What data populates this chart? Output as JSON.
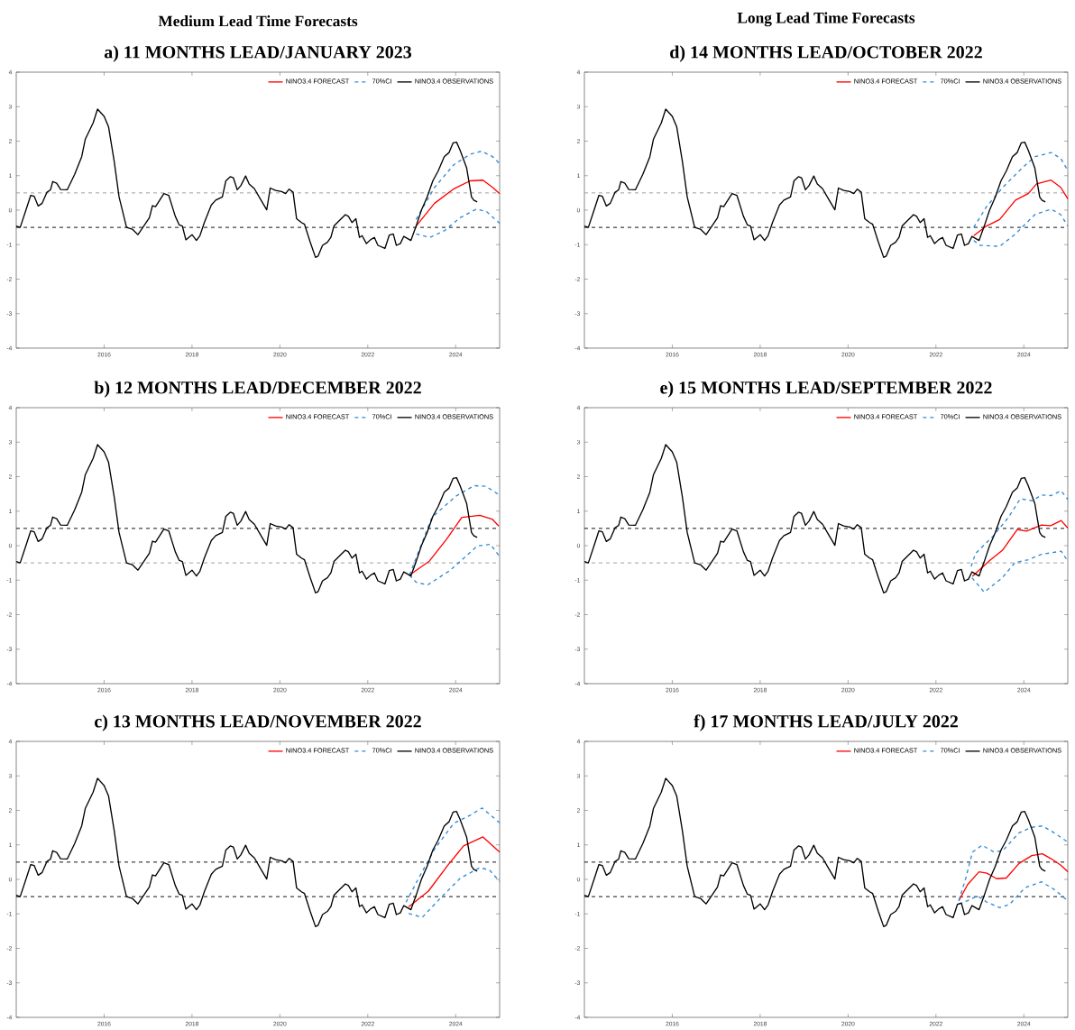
{
  "chart_data": [
    {
      "type": "line",
      "title": "a) 11 MONTHS LEAD/JANUARY 2023",
      "annotations": [
        "Medium Lead Time Forecasts"
      ],
      "xlim": [
        2014,
        2025
      ],
      "ylim": [
        -4,
        4
      ],
      "xticks": [
        2016,
        2018,
        2020,
        2022,
        2024
      ],
      "yticks": [
        -4,
        -3,
        -2,
        -1,
        0,
        1,
        2,
        3,
        4
      ],
      "legend": "top right",
      "marker": "none",
      "ref_lines": [
        {
          "axis": "y",
          "value": 0.5,
          "color": "#999999",
          "line_style": "dashed"
        },
        {
          "axis": "y",
          "value": -0.5,
          "color": "#000000",
          "line_style": "dashed"
        }
      ],
      "series": [
        {
          "name": "NINO3.4 FORECAST",
          "color": "#ff0000",
          "line_style": "solid",
          "x": [
            2023.1,
            2023.52,
            2023.96,
            2024.33,
            2024.62,
            2024.84,
            2025.0
          ],
          "values": [
            -0.46,
            0.2,
            0.62,
            0.85,
            0.87,
            0.66,
            0.48
          ]
        },
        {
          "name": "70%CI",
          "color": "#2e8ad8",
          "line_style": "dashed",
          "x": [
            2023.1,
            2023.52,
            2023.96,
            2024.33,
            2024.59,
            2024.84,
            2025.0
          ],
          "values": [
            -0.27,
            0.66,
            1.32,
            1.62,
            1.71,
            1.55,
            1.35
          ]
        },
        {
          "color": "#2e8ad8",
          "line_style": "dashed",
          "x": [
            2023.1,
            2023.41,
            2023.74,
            2024.1,
            2024.47,
            2024.7,
            2025.0
          ],
          "values": [
            -0.69,
            -0.79,
            -0.6,
            -0.22,
            0.03,
            -0.04,
            -0.38
          ]
        },
        {
          "name": "NINO3.4 OBSERVATIONS",
          "color": "#000000",
          "line_style": "solid",
          "x": [
            2014.0,
            2014.09,
            2014.22,
            2014.33,
            2014.41,
            2014.5,
            2014.59,
            2014.7,
            2014.78,
            2014.83,
            2014.92,
            2015.01,
            2015.16,
            2015.33,
            2015.49,
            2015.57,
            2015.75,
            2015.85,
            2016.0,
            2016.1,
            2016.23,
            2016.34,
            2016.51,
            2016.64,
            2016.77,
            2017.03,
            2017.1,
            2017.17,
            2017.36,
            2017.47,
            2017.62,
            2017.71,
            2017.78,
            2017.86,
            2018.0,
            2018.1,
            2018.18,
            2018.28,
            2018.44,
            2018.54,
            2018.69,
            2018.77,
            2018.87,
            2018.94,
            2019.03,
            2019.11,
            2019.22,
            2019.3,
            2019.42,
            2019.57,
            2019.7,
            2019.78,
            2019.9,
            2020.04,
            2020.13,
            2020.21,
            2020.3,
            2020.38,
            2020.49,
            2020.56,
            2020.69,
            2020.81,
            2020.87,
            2020.97,
            2021.08,
            2021.16,
            2021.23,
            2021.38,
            2021.49,
            2021.56,
            2021.64,
            2021.73,
            2021.81,
            2021.87,
            2021.97,
            2022.06,
            2022.15,
            2022.23,
            2022.39,
            2022.49,
            2022.58,
            2022.65,
            2022.74,
            2022.82,
            2022.98,
            2023.1,
            2023.22,
            2023.35,
            2023.48,
            2023.6,
            2023.74,
            2023.85,
            2023.94,
            2024.02,
            2024.1,
            2024.25,
            2024.36,
            2024.41,
            2024.49
          ],
          "values": [
            -0.46,
            -0.5,
            0.0,
            0.43,
            0.4,
            0.12,
            0.2,
            0.52,
            0.59,
            0.83,
            0.78,
            0.6,
            0.59,
            1.04,
            1.55,
            2.05,
            2.53,
            2.93,
            2.72,
            2.42,
            1.41,
            0.38,
            -0.5,
            -0.55,
            -0.71,
            -0.22,
            0.13,
            0.1,
            0.48,
            0.43,
            -0.18,
            -0.43,
            -0.46,
            -0.86,
            -0.71,
            -0.88,
            -0.74,
            -0.36,
            0.15,
            0.29,
            0.38,
            0.85,
            0.97,
            0.94,
            0.59,
            0.71,
            0.99,
            0.76,
            0.62,
            0.29,
            0.01,
            0.64,
            0.57,
            0.54,
            0.48,
            0.61,
            0.52,
            -0.25,
            -0.36,
            -0.41,
            -0.93,
            -1.37,
            -1.33,
            -1.02,
            -0.93,
            -0.79,
            -0.46,
            -0.27,
            -0.13,
            -0.18,
            -0.36,
            -0.25,
            -0.79,
            -0.74,
            -0.97,
            -0.86,
            -0.79,
            -1.02,
            -1.11,
            -0.72,
            -0.69,
            -1.02,
            -0.97,
            -0.76,
            -0.88,
            -0.46,
            0.0,
            0.38,
            0.85,
            1.13,
            1.55,
            1.67,
            1.95,
            1.97,
            1.74,
            1.22,
            0.38,
            0.29,
            0.24
          ]
        }
      ]
    },
    {
      "type": "line",
      "title": "b) 12 MONTHS LEAD/DECEMBER 2022",
      "xlim": [
        2014,
        2025
      ],
      "ylim": [
        -4,
        4
      ],
      "xticks": [
        2016,
        2018,
        2020,
        2022,
        2024
      ],
      "yticks": [
        -4,
        -3,
        -2,
        -1,
        0,
        1,
        2,
        3,
        4
      ],
      "legend": "top right",
      "marker": "none",
      "ref_lines": [
        {
          "axis": "y",
          "value": 0.5,
          "color": "#000000",
          "line_style": "dashed"
        },
        {
          "axis": "y",
          "value": -0.5,
          "color": "#999999",
          "line_style": "dashed"
        }
      ],
      "series": [
        {
          "name": "NINO3.4 FORECAST",
          "color": "#ff0000",
          "line_style": "solid",
          "x": [
            2022.95,
            2023.4,
            2023.8,
            2024.14,
            2024.55,
            2024.83,
            2024.98
          ],
          "values": [
            -0.85,
            -0.45,
            0.2,
            0.82,
            0.88,
            0.77,
            0.57
          ]
        },
        {
          "name": "70%CI",
          "color": "#2e8ad8",
          "line_style": "dashed",
          "x": [
            2022.95,
            2023.46,
            2024.0,
            2024.42,
            2024.69,
            2024.98
          ],
          "values": [
            -0.85,
            0.82,
            1.43,
            1.74,
            1.72,
            1.48
          ]
        },
        {
          "color": "#2e8ad8",
          "line_style": "dashed",
          "x": [
            2022.95,
            2023.1,
            2023.36,
            2023.87,
            2024.49,
            2024.79,
            2024.98
          ],
          "values": [
            -0.85,
            -1.06,
            -1.14,
            -0.72,
            -0.01,
            0.04,
            -0.28
          ]
        },
        {
          "name": "NINO3.4 OBSERVATIONS",
          "color": "#000000",
          "line_style": "solid",
          "x": [
            2014.0,
            2014.09,
            2014.22,
            2014.33,
            2014.41,
            2014.5,
            2014.59,
            2014.7,
            2014.78,
            2014.83,
            2014.92,
            2015.01,
            2015.16,
            2015.33,
            2015.49,
            2015.57,
            2015.75,
            2015.85,
            2016.0,
            2016.1,
            2016.23,
            2016.34,
            2016.51,
            2016.64,
            2016.77,
            2017.03,
            2017.1,
            2017.17,
            2017.36,
            2017.47,
            2017.62,
            2017.71,
            2017.78,
            2017.86,
            2018.0,
            2018.1,
            2018.18,
            2018.28,
            2018.44,
            2018.54,
            2018.69,
            2018.77,
            2018.87,
            2018.94,
            2019.03,
            2019.11,
            2019.22,
            2019.3,
            2019.42,
            2019.57,
            2019.7,
            2019.78,
            2019.9,
            2020.04,
            2020.13,
            2020.21,
            2020.3,
            2020.38,
            2020.49,
            2020.56,
            2020.69,
            2020.81,
            2020.87,
            2020.97,
            2021.08,
            2021.16,
            2021.23,
            2021.38,
            2021.49,
            2021.56,
            2021.64,
            2021.73,
            2021.81,
            2021.87,
            2021.97,
            2022.06,
            2022.15,
            2022.23,
            2022.39,
            2022.49,
            2022.58,
            2022.65,
            2022.74,
            2022.82,
            2022.98,
            2023.1,
            2023.22,
            2023.35,
            2023.48,
            2023.6,
            2023.74,
            2023.85,
            2023.94,
            2024.02,
            2024.1,
            2024.25,
            2024.36,
            2024.41,
            2024.49
          ],
          "values": [
            -0.46,
            -0.5,
            0.0,
            0.43,
            0.4,
            0.12,
            0.2,
            0.52,
            0.59,
            0.83,
            0.78,
            0.6,
            0.59,
            1.04,
            1.55,
            2.05,
            2.53,
            2.93,
            2.72,
            2.42,
            1.41,
            0.38,
            -0.5,
            -0.55,
            -0.71,
            -0.22,
            0.13,
            0.1,
            0.48,
            0.43,
            -0.18,
            -0.43,
            -0.46,
            -0.86,
            -0.71,
            -0.88,
            -0.74,
            -0.36,
            0.15,
            0.29,
            0.38,
            0.85,
            0.97,
            0.94,
            0.59,
            0.71,
            0.99,
            0.76,
            0.62,
            0.29,
            0.01,
            0.64,
            0.57,
            0.54,
            0.48,
            0.61,
            0.52,
            -0.25,
            -0.36,
            -0.41,
            -0.93,
            -1.37,
            -1.33,
            -1.02,
            -0.93,
            -0.79,
            -0.46,
            -0.27,
            -0.13,
            -0.18,
            -0.36,
            -0.25,
            -0.79,
            -0.74,
            -0.97,
            -0.86,
            -0.79,
            -1.02,
            -1.11,
            -0.72,
            -0.69,
            -1.02,
            -0.97,
            -0.76,
            -0.88,
            -0.46,
            0.0,
            0.38,
            0.85,
            1.13,
            1.55,
            1.67,
            1.95,
            1.97,
            1.74,
            1.22,
            0.38,
            0.29,
            0.24
          ]
        }
      ]
    },
    {
      "type": "line",
      "title": "c) 13 MONTHS LEAD/NOVEMBER 2022",
      "xlim": [
        2014,
        2025
      ],
      "ylim": [
        -4,
        4
      ],
      "xticks": [
        2016,
        2018,
        2020,
        2022,
        2024
      ],
      "yticks": [
        -4,
        -3,
        -2,
        -1,
        0,
        1,
        2,
        3,
        4
      ],
      "legend": "top right",
      "marker": "none",
      "ref_lines": [
        {
          "axis": "y",
          "value": 0.5,
          "color": "#000000",
          "line_style": "dashed"
        },
        {
          "axis": "y",
          "value": -0.5,
          "color": "#000000",
          "line_style": "dashed"
        }
      ],
      "series": [
        {
          "name": "NINO3.4 FORECAST",
          "color": "#ff0000",
          "line_style": "solid",
          "x": [
            2022.93,
            2023.38,
            2023.82,
            2024.18,
            2024.62,
            2025.0
          ],
          "values": [
            -0.8,
            -0.34,
            0.41,
            0.97,
            1.23,
            0.79
          ]
        },
        {
          "name": "70%CI",
          "color": "#2e8ad8",
          "line_style": "dashed",
          "x": [
            2022.87,
            2023.16,
            2023.52,
            2023.96,
            2024.33,
            2024.6,
            2025.0
          ],
          "values": [
            -0.66,
            0.04,
            0.88,
            1.63,
            1.86,
            2.07,
            1.64
          ]
        },
        {
          "color": "#2e8ad8",
          "line_style": "dashed",
          "x": [
            2022.93,
            2023.24,
            2023.67,
            2024.11,
            2024.55,
            2024.77,
            2025.0
          ],
          "values": [
            -0.99,
            -1.1,
            -0.52,
            0.04,
            0.34,
            0.27,
            -0.06
          ]
        },
        {
          "name": "NINO3.4 OBSERVATIONS",
          "color": "#000000",
          "line_style": "solid",
          "x": [
            2014.0,
            2014.09,
            2014.22,
            2014.33,
            2014.41,
            2014.5,
            2014.59,
            2014.7,
            2014.78,
            2014.83,
            2014.92,
            2015.01,
            2015.16,
            2015.33,
            2015.49,
            2015.57,
            2015.75,
            2015.85,
            2016.0,
            2016.1,
            2016.23,
            2016.34,
            2016.51,
            2016.64,
            2016.77,
            2017.03,
            2017.1,
            2017.17,
            2017.36,
            2017.47,
            2017.62,
            2017.71,
            2017.78,
            2017.86,
            2018.0,
            2018.1,
            2018.18,
            2018.28,
            2018.44,
            2018.54,
            2018.69,
            2018.77,
            2018.87,
            2018.94,
            2019.03,
            2019.11,
            2019.22,
            2019.3,
            2019.42,
            2019.57,
            2019.7,
            2019.78,
            2019.9,
            2020.04,
            2020.13,
            2020.21,
            2020.3,
            2020.38,
            2020.49,
            2020.56,
            2020.69,
            2020.81,
            2020.87,
            2020.97,
            2021.08,
            2021.16,
            2021.23,
            2021.38,
            2021.49,
            2021.56,
            2021.64,
            2021.73,
            2021.81,
            2021.87,
            2021.97,
            2022.06,
            2022.15,
            2022.23,
            2022.39,
            2022.49,
            2022.58,
            2022.65,
            2022.74,
            2022.82,
            2022.98,
            2023.1,
            2023.22,
            2023.35,
            2023.48,
            2023.6,
            2023.74,
            2023.85,
            2023.94,
            2024.02,
            2024.1,
            2024.25,
            2024.36,
            2024.41,
            2024.49
          ],
          "values": [
            -0.46,
            -0.5,
            0.0,
            0.43,
            0.4,
            0.12,
            0.2,
            0.52,
            0.59,
            0.83,
            0.78,
            0.6,
            0.59,
            1.04,
            1.55,
            2.05,
            2.53,
            2.93,
            2.72,
            2.42,
            1.41,
            0.38,
            -0.5,
            -0.55,
            -0.71,
            -0.22,
            0.13,
            0.1,
            0.48,
            0.43,
            -0.18,
            -0.43,
            -0.46,
            -0.86,
            -0.71,
            -0.88,
            -0.74,
            -0.36,
            0.15,
            0.29,
            0.38,
            0.85,
            0.97,
            0.94,
            0.59,
            0.71,
            0.99,
            0.76,
            0.62,
            0.29,
            0.01,
            0.64,
            0.57,
            0.54,
            0.48,
            0.61,
            0.52,
            -0.25,
            -0.36,
            -0.41,
            -0.93,
            -1.37,
            -1.33,
            -1.02,
            -0.93,
            -0.79,
            -0.46,
            -0.27,
            -0.13,
            -0.18,
            -0.36,
            -0.25,
            -0.79,
            -0.74,
            -0.97,
            -0.86,
            -0.79,
            -1.02,
            -1.11,
            -0.72,
            -0.69,
            -1.02,
            -0.97,
            -0.76,
            -0.88,
            -0.46,
            0.0,
            0.38,
            0.85,
            1.13,
            1.55,
            1.67,
            1.95,
            1.97,
            1.74,
            1.22,
            0.38,
            0.29,
            0.24
          ]
        }
      ]
    },
    {
      "type": "line",
      "title": "d) 14 MONTHS LEAD/OCTOBER 2022",
      "annotations": [
        "Long Lead Time Forecasts"
      ],
      "xlim": [
        2014,
        2025
      ],
      "ylim": [
        -4,
        4
      ],
      "xticks": [
        2016,
        2018,
        2020,
        2022,
        2024
      ],
      "yticks": [
        -4,
        -3,
        -2,
        -1,
        0,
        1,
        2,
        3,
        4
      ],
      "legend": "top right",
      "marker": "none",
      "ref_lines": [
        {
          "axis": "y",
          "value": 0.5,
          "color": "#999999",
          "line_style": "dashed"
        },
        {
          "axis": "y",
          "value": -0.5,
          "color": "#000000",
          "line_style": "dashed"
        }
      ],
      "series": [
        {
          "name": "NINO3.4 FORECAST",
          "color": "#ff0000",
          "line_style": "solid",
          "x": [
            2022.86,
            2023.15,
            2023.45,
            2023.81,
            2024.1,
            2024.29,
            2024.62,
            2024.84,
            2025.0
          ],
          "values": [
            -0.74,
            -0.46,
            -0.27,
            0.29,
            0.48,
            0.76,
            0.87,
            0.66,
            0.33
          ]
        },
        {
          "name": "70%CI",
          "color": "#2e8ad8",
          "line_style": "dashed",
          "x": [
            2022.86,
            2023.15,
            2023.52,
            2023.96,
            2024.25,
            2024.62,
            2024.84,
            2025.0
          ],
          "values": [
            -0.5,
            0.1,
            0.66,
            1.22,
            1.55,
            1.67,
            1.5,
            1.15
          ]
        },
        {
          "color": "#2e8ad8",
          "line_style": "dashed",
          "x": [
            2022.86,
            2023.0,
            2023.45,
            2023.81,
            2024.25,
            2024.62,
            2024.84,
            2025.0
          ],
          "values": [
            -0.88,
            -1.02,
            -1.05,
            -0.69,
            -0.13,
            0.03,
            -0.13,
            -0.46
          ]
        },
        {
          "name": "NINO3.4 OBSERVATIONS",
          "color": "#000000",
          "line_style": "solid",
          "x": [
            2014.0,
            2014.09,
            2014.22,
            2014.33,
            2014.41,
            2014.5,
            2014.59,
            2014.7,
            2014.78,
            2014.83,
            2014.92,
            2015.01,
            2015.16,
            2015.33,
            2015.49,
            2015.57,
            2015.75,
            2015.85,
            2016.0,
            2016.1,
            2016.23,
            2016.34,
            2016.51,
            2016.64,
            2016.77,
            2017.03,
            2017.1,
            2017.17,
            2017.36,
            2017.47,
            2017.62,
            2017.71,
            2017.78,
            2017.86,
            2018.0,
            2018.1,
            2018.18,
            2018.28,
            2018.44,
            2018.54,
            2018.69,
            2018.77,
            2018.87,
            2018.94,
            2019.03,
            2019.11,
            2019.22,
            2019.3,
            2019.42,
            2019.57,
            2019.7,
            2019.78,
            2019.9,
            2020.04,
            2020.13,
            2020.21,
            2020.3,
            2020.38,
            2020.49,
            2020.56,
            2020.69,
            2020.81,
            2020.87,
            2020.97,
            2021.08,
            2021.16,
            2021.23,
            2021.38,
            2021.49,
            2021.56,
            2021.64,
            2021.73,
            2021.81,
            2021.87,
            2021.97,
            2022.06,
            2022.15,
            2022.23,
            2022.39,
            2022.49,
            2022.58,
            2022.65,
            2022.74,
            2022.82,
            2022.98,
            2023.1,
            2023.22,
            2023.35,
            2023.48,
            2023.6,
            2023.74,
            2023.85,
            2023.94,
            2024.02,
            2024.1,
            2024.25,
            2024.36,
            2024.41,
            2024.49
          ],
          "values": [
            -0.46,
            -0.5,
            0.0,
            0.43,
            0.4,
            0.12,
            0.2,
            0.52,
            0.59,
            0.83,
            0.78,
            0.6,
            0.59,
            1.04,
            1.55,
            2.05,
            2.53,
            2.93,
            2.72,
            2.42,
            1.41,
            0.38,
            -0.5,
            -0.55,
            -0.71,
            -0.22,
            0.13,
            0.1,
            0.48,
            0.43,
            -0.18,
            -0.43,
            -0.46,
            -0.86,
            -0.71,
            -0.88,
            -0.74,
            -0.36,
            0.15,
            0.29,
            0.38,
            0.85,
            0.97,
            0.94,
            0.59,
            0.71,
            0.99,
            0.76,
            0.62,
            0.29,
            0.01,
            0.64,
            0.57,
            0.54,
            0.48,
            0.61,
            0.52,
            -0.25,
            -0.36,
            -0.41,
            -0.93,
            -1.37,
            -1.33,
            -1.02,
            -0.93,
            -0.79,
            -0.46,
            -0.27,
            -0.13,
            -0.18,
            -0.36,
            -0.25,
            -0.79,
            -0.74,
            -0.97,
            -0.86,
            -0.79,
            -1.02,
            -1.11,
            -0.72,
            -0.69,
            -1.02,
            -0.97,
            -0.76,
            -0.88,
            -0.46,
            0.0,
            0.38,
            0.85,
            1.13,
            1.55,
            1.67,
            1.95,
            1.97,
            1.74,
            1.22,
            0.38,
            0.29,
            0.24
          ]
        }
      ]
    },
    {
      "type": "line",
      "title": "e) 15 MONTHS LEAD/SEPTEMBER 2022",
      "xlim": [
        2014,
        2025
      ],
      "ylim": [
        -4,
        4
      ],
      "xticks": [
        2016,
        2018,
        2020,
        2022,
        2024
      ],
      "yticks": [
        -4,
        -3,
        -2,
        -1,
        0,
        1,
        2,
        3,
        4
      ],
      "legend": "top right",
      "marker": "none",
      "ref_lines": [
        {
          "axis": "y",
          "value": 0.5,
          "color": "#000000",
          "line_style": "dashed"
        },
        {
          "axis": "y",
          "value": -0.5,
          "color": "#999999",
          "line_style": "dashed"
        }
      ],
      "series": [
        {
          "name": "NINO3.4 FORECAST",
          "color": "#ff0000",
          "line_style": "solid",
          "x": [
            2022.83,
            2023.24,
            2023.51,
            2023.85,
            2024.06,
            2024.4,
            2024.61,
            2024.85,
            2025.0
          ],
          "values": [
            -0.89,
            -0.41,
            -0.14,
            0.47,
            0.42,
            0.6,
            0.58,
            0.73,
            0.51
          ]
        },
        {
          "name": "70%CI",
          "color": "#2e8ad8",
          "line_style": "dashed",
          "x": [
            2022.8,
            2022.9,
            2023.31,
            2023.65,
            2023.92,
            2024.2,
            2024.4,
            2024.61,
            2024.85,
            2025.0
          ],
          "values": [
            -0.6,
            -0.23,
            0.29,
            0.82,
            1.36,
            1.3,
            1.47,
            1.45,
            1.59,
            1.34
          ]
        },
        {
          "color": "#2e8ad8",
          "line_style": "dashed",
          "x": [
            2022.82,
            2023.1,
            2023.51,
            2023.8,
            2024.1,
            2024.4,
            2024.85,
            2025.0
          ],
          "values": [
            -0.93,
            -1.35,
            -0.93,
            -0.49,
            -0.41,
            -0.25,
            -0.16,
            -0.45
          ]
        },
        {
          "name": "NINO3.4 OBSERVATIONS",
          "color": "#000000",
          "line_style": "solid",
          "x": [
            2014.0,
            2014.09,
            2014.22,
            2014.33,
            2014.41,
            2014.5,
            2014.59,
            2014.7,
            2014.78,
            2014.83,
            2014.92,
            2015.01,
            2015.16,
            2015.33,
            2015.49,
            2015.57,
            2015.75,
            2015.85,
            2016.0,
            2016.1,
            2016.23,
            2016.34,
            2016.51,
            2016.64,
            2016.77,
            2017.03,
            2017.1,
            2017.17,
            2017.36,
            2017.47,
            2017.62,
            2017.71,
            2017.78,
            2017.86,
            2018.0,
            2018.1,
            2018.18,
            2018.28,
            2018.44,
            2018.54,
            2018.69,
            2018.77,
            2018.87,
            2018.94,
            2019.03,
            2019.11,
            2019.22,
            2019.3,
            2019.42,
            2019.57,
            2019.7,
            2019.78,
            2019.9,
            2020.04,
            2020.13,
            2020.21,
            2020.3,
            2020.38,
            2020.49,
            2020.56,
            2020.69,
            2020.81,
            2020.87,
            2020.97,
            2021.08,
            2021.16,
            2021.23,
            2021.38,
            2021.49,
            2021.56,
            2021.64,
            2021.73,
            2021.81,
            2021.87,
            2021.97,
            2022.06,
            2022.15,
            2022.23,
            2022.39,
            2022.49,
            2022.58,
            2022.65,
            2022.74,
            2022.82,
            2022.98,
            2023.1,
            2023.22,
            2023.35,
            2023.48,
            2023.6,
            2023.74,
            2023.85,
            2023.94,
            2024.02,
            2024.1,
            2024.25,
            2024.36,
            2024.41,
            2024.49
          ],
          "values": [
            -0.46,
            -0.5,
            0.0,
            0.43,
            0.4,
            0.12,
            0.2,
            0.52,
            0.59,
            0.83,
            0.78,
            0.6,
            0.59,
            1.04,
            1.55,
            2.05,
            2.53,
            2.93,
            2.72,
            2.42,
            1.41,
            0.38,
            -0.5,
            -0.55,
            -0.71,
            -0.22,
            0.13,
            0.1,
            0.48,
            0.43,
            -0.18,
            -0.43,
            -0.46,
            -0.86,
            -0.71,
            -0.88,
            -0.74,
            -0.36,
            0.15,
            0.29,
            0.38,
            0.85,
            0.97,
            0.94,
            0.59,
            0.71,
            0.99,
            0.76,
            0.62,
            0.29,
            0.01,
            0.64,
            0.57,
            0.54,
            0.48,
            0.61,
            0.52,
            -0.25,
            -0.36,
            -0.41,
            -0.93,
            -1.37,
            -1.33,
            -1.02,
            -0.93,
            -0.79,
            -0.46,
            -0.27,
            -0.13,
            -0.18,
            -0.36,
            -0.25,
            -0.79,
            -0.74,
            -0.97,
            -0.86,
            -0.79,
            -1.02,
            -1.11,
            -0.72,
            -0.69,
            -1.02,
            -0.97,
            -0.76,
            -0.88,
            -0.46,
            0.0,
            0.38,
            0.85,
            1.13,
            1.55,
            1.67,
            1.95,
            1.97,
            1.74,
            1.22,
            0.38,
            0.29,
            0.24
          ]
        }
      ]
    },
    {
      "type": "line",
      "title": "f) 17 MONTHS LEAD/JULY 2022",
      "xlim": [
        2014,
        2025
      ],
      "ylim": [
        -4,
        4
      ],
      "xticks": [
        2016,
        2018,
        2020,
        2022,
        2024
      ],
      "yticks": [
        -4,
        -3,
        -2,
        -1,
        0,
        1,
        2,
        3,
        4
      ],
      "legend": "top right",
      "marker": "none",
      "ref_lines": [
        {
          "axis": "y",
          "value": 0.5,
          "color": "#000000",
          "line_style": "dashed"
        },
        {
          "axis": "y",
          "value": -0.5,
          "color": "#000000",
          "line_style": "dashed"
        }
      ],
      "series": [
        {
          "name": "NINO3.4 FORECAST",
          "color": "#ff0000",
          "line_style": "solid",
          "x": [
            2022.52,
            2022.72,
            2022.98,
            2023.16,
            2023.38,
            2023.6,
            2023.89,
            2024.18,
            2024.42,
            2024.62,
            2024.84,
            2025.0
          ],
          "values": [
            -0.62,
            -0.15,
            0.22,
            0.18,
            0.02,
            0.04,
            0.46,
            0.69,
            0.74,
            0.6,
            0.41,
            0.22
          ]
        },
        {
          "name": "70%CI",
          "color": "#2e8ad8",
          "line_style": "dashed",
          "x": [
            2022.52,
            2022.68,
            2022.83,
            2023.05,
            2023.31,
            2023.52,
            2023.89,
            2024.18,
            2024.42,
            2024.69,
            2025.0
          ],
          "values": [
            -0.62,
            0.04,
            0.79,
            0.99,
            0.8,
            0.83,
            1.35,
            1.51,
            1.55,
            1.35,
            1.08
          ]
        },
        {
          "color": "#2e8ad8",
          "line_style": "dashed",
          "x": [
            2022.52,
            2022.72,
            2022.94,
            2023.16,
            2023.45,
            2023.67,
            2024.03,
            2024.4,
            2024.69,
            2025.0
          ],
          "values": [
            -0.71,
            -0.62,
            -0.48,
            -0.66,
            -0.82,
            -0.73,
            -0.24,
            -0.07,
            -0.29,
            -0.62
          ]
        },
        {
          "name": "NINO3.4 OBSERVATIONS",
          "color": "#000000",
          "line_style": "solid",
          "x": [
            2014.0,
            2014.09,
            2014.22,
            2014.33,
            2014.41,
            2014.5,
            2014.59,
            2014.7,
            2014.78,
            2014.83,
            2014.92,
            2015.01,
            2015.16,
            2015.33,
            2015.49,
            2015.57,
            2015.75,
            2015.85,
            2016.0,
            2016.1,
            2016.23,
            2016.34,
            2016.51,
            2016.64,
            2016.77,
            2017.03,
            2017.1,
            2017.17,
            2017.36,
            2017.47,
            2017.62,
            2017.71,
            2017.78,
            2017.86,
            2018.0,
            2018.1,
            2018.18,
            2018.28,
            2018.44,
            2018.54,
            2018.69,
            2018.77,
            2018.87,
            2018.94,
            2019.03,
            2019.11,
            2019.22,
            2019.3,
            2019.42,
            2019.57,
            2019.7,
            2019.78,
            2019.9,
            2020.04,
            2020.13,
            2020.21,
            2020.3,
            2020.38,
            2020.49,
            2020.56,
            2020.69,
            2020.81,
            2020.87,
            2020.97,
            2021.08,
            2021.16,
            2021.23,
            2021.38,
            2021.49,
            2021.56,
            2021.64,
            2021.73,
            2021.81,
            2021.87,
            2021.97,
            2022.06,
            2022.15,
            2022.23,
            2022.39,
            2022.49,
            2022.58,
            2022.65,
            2022.74,
            2022.82,
            2022.98,
            2023.1,
            2023.22,
            2023.35,
            2023.48,
            2023.6,
            2023.74,
            2023.85,
            2023.94,
            2024.02,
            2024.1,
            2024.25,
            2024.36,
            2024.41,
            2024.49
          ],
          "values": [
            -0.46,
            -0.5,
            0.0,
            0.43,
            0.4,
            0.12,
            0.2,
            0.52,
            0.59,
            0.83,
            0.78,
            0.6,
            0.59,
            1.04,
            1.55,
            2.05,
            2.53,
            2.93,
            2.72,
            2.42,
            1.41,
            0.38,
            -0.5,
            -0.55,
            -0.71,
            -0.22,
            0.13,
            0.1,
            0.48,
            0.43,
            -0.18,
            -0.43,
            -0.46,
            -0.86,
            -0.71,
            -0.88,
            -0.74,
            -0.36,
            0.15,
            0.29,
            0.38,
            0.85,
            0.97,
            0.94,
            0.59,
            0.71,
            0.99,
            0.76,
            0.62,
            0.29,
            0.01,
            0.64,
            0.57,
            0.54,
            0.48,
            0.61,
            0.52,
            -0.25,
            -0.36,
            -0.41,
            -0.93,
            -1.37,
            -1.33,
            -1.02,
            -0.93,
            -0.79,
            -0.46,
            -0.27,
            -0.13,
            -0.18,
            -0.36,
            -0.25,
            -0.79,
            -0.74,
            -0.97,
            -0.86,
            -0.79,
            -1.02,
            -1.11,
            -0.72,
            -0.69,
            -1.02,
            -0.97,
            -0.76,
            -0.88,
            -0.46,
            0.0,
            0.38,
            0.85,
            1.13,
            1.55,
            1.67,
            1.95,
            1.97,
            1.74,
            1.22,
            0.38,
            0.29,
            0.24
          ]
        }
      ]
    }
  ]
}
